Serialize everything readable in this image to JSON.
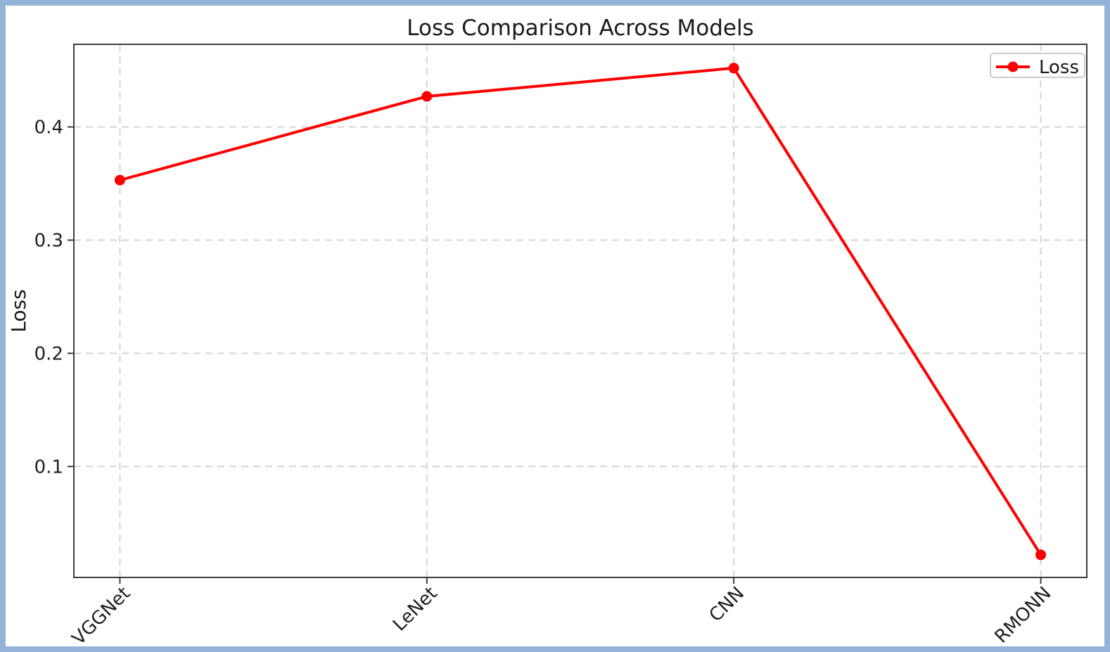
{
  "frame": {
    "border_color": "#94b3d8",
    "background": "#ffffff"
  },
  "chart_data": {
    "type": "line",
    "title": "Loss Comparison Across Models",
    "xlabel": "",
    "ylabel": "Loss",
    "categories": [
      "VGGNet",
      "LeNet",
      "CNN",
      "RMONN"
    ],
    "series": [
      {
        "name": "Loss",
        "color": "#ff0000",
        "marker": "circle",
        "values": [
          0.353,
          0.427,
          0.452,
          0.022
        ]
      }
    ],
    "yticks": [
      0.1,
      0.2,
      0.3,
      0.4
    ],
    "ylim": [
      0.002,
      0.473
    ],
    "x_tick_rotation": 45,
    "grid": true,
    "grid_style": "dashed",
    "legend": {
      "position": "upper right",
      "entries": [
        "Loss"
      ]
    }
  }
}
